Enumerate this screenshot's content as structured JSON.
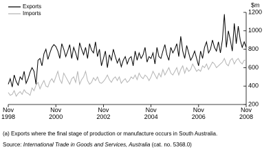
{
  "chart_data": {
    "type": "line",
    "y_unit": "$m",
    "footnote": "(a) Exports where the final stage of production or manufacture occurs in South Australia.",
    "source_prefix": "Source: ",
    "source_title": "International Trade in Goods and Services, Australia",
    "source_suffix": " (cat. no. 5368.0)",
    "x": [
      "1998-11",
      "1998-12",
      "1999-01",
      "1999-02",
      "1999-03",
      "1999-04",
      "1999-05",
      "1999-06",
      "1999-07",
      "1999-08",
      "1999-09",
      "1999-10",
      "1999-11",
      "1999-12",
      "2000-01",
      "2000-02",
      "2000-03",
      "2000-04",
      "2000-05",
      "2000-06",
      "2000-07",
      "2000-08",
      "2000-09",
      "2000-10",
      "2000-11",
      "2000-12",
      "2001-01",
      "2001-02",
      "2001-03",
      "2001-04",
      "2001-05",
      "2001-06",
      "2001-07",
      "2001-08",
      "2001-09",
      "2001-10",
      "2001-11",
      "2001-12",
      "2002-01",
      "2002-02",
      "2002-03",
      "2002-04",
      "2002-05",
      "2002-06",
      "2002-07",
      "2002-08",
      "2002-09",
      "2002-10",
      "2002-11",
      "2002-12",
      "2003-01",
      "2003-02",
      "2003-03",
      "2003-04",
      "2003-05",
      "2003-06",
      "2003-07",
      "2003-08",
      "2003-09",
      "2003-10",
      "2003-11",
      "2003-12",
      "2004-01",
      "2004-02",
      "2004-03",
      "2004-04",
      "2004-05",
      "2004-06",
      "2004-07",
      "2004-08",
      "2004-09",
      "2004-10",
      "2004-11",
      "2004-12",
      "2005-01",
      "2005-02",
      "2005-03",
      "2005-04",
      "2005-05",
      "2005-06",
      "2005-07",
      "2005-08",
      "2005-09",
      "2005-10",
      "2005-11",
      "2005-12",
      "2006-01",
      "2006-02",
      "2006-03",
      "2006-04",
      "2006-05",
      "2006-06",
      "2006-07",
      "2006-08",
      "2006-09",
      "2006-10",
      "2006-11",
      "2006-12",
      "2007-01",
      "2007-02",
      "2007-03",
      "2007-04",
      "2007-05",
      "2007-06",
      "2007-07",
      "2007-08",
      "2007-09",
      "2007-10",
      "2007-11",
      "2007-12",
      "2008-01",
      "2008-02",
      "2008-03",
      "2008-04",
      "2008-05",
      "2008-06",
      "2008-07",
      "2008-08",
      "2008-09",
      "2008-10",
      "2008-11"
    ],
    "series": [
      {
        "name": "Exports",
        "color": "#000000",
        "values": [
          420,
          480,
          390,
          520,
          450,
          410,
          500,
          470,
          560,
          430,
          480,
          550,
          600,
          560,
          420,
          680,
          700,
          620,
          750,
          800,
          690,
          760,
          820,
          850,
          830,
          780,
          700,
          860,
          800,
          720,
          780,
          850,
          700,
          820,
          760,
          680,
          870,
          800,
          740,
          820,
          700,
          860,
          790,
          760,
          880,
          720,
          800,
          620,
          700,
          780,
          600,
          740,
          680,
          800,
          720,
          650,
          700,
          610,
          680,
          720,
          640,
          700,
          720,
          620,
          780,
          680,
          760,
          700,
          740,
          820,
          660,
          720,
          700,
          760,
          640,
          820,
          720,
          700,
          780,
          850,
          740,
          680,
          820,
          760,
          800,
          860,
          720,
          940,
          780,
          700,
          840,
          760,
          680,
          720,
          780,
          700,
          620,
          780,
          700,
          820,
          880,
          760,
          800,
          900,
          820,
          780,
          880,
          760,
          900,
          1180,
          820,
          1000,
          900,
          780,
          1080,
          860,
          1050,
          900,
          820,
          880,
          820
        ]
      },
      {
        "name": "Imports",
        "color": "#b4b4b4",
        "values": [
          330,
          300,
          310,
          350,
          290,
          320,
          340,
          310,
          360,
          330,
          320,
          300,
          380,
          350,
          410,
          440,
          370,
          420,
          460,
          400,
          390,
          450,
          480,
          440,
          500,
          560,
          470,
          430,
          540,
          500,
          460,
          420,
          480,
          500,
          440,
          560,
          420,
          470,
          500,
          560,
          460,
          420,
          440,
          490,
          460,
          500,
          440,
          430,
          450,
          480,
          520,
          470,
          440,
          480,
          500,
          460,
          500,
          430,
          460,
          480,
          440,
          460,
          500,
          480,
          520,
          470,
          540,
          500,
          480,
          520,
          500,
          460,
          500,
          560,
          520,
          480,
          540,
          500,
          580,
          520,
          560,
          600,
          540,
          520,
          560,
          600,
          520,
          580,
          620,
          540,
          600,
          560,
          580,
          640,
          600,
          560,
          580,
          560,
          620,
          600,
          640,
          580,
          620,
          660,
          640,
          600,
          620,
          640,
          660,
          700,
          640,
          620,
          680,
          700,
          640,
          680,
          700,
          660,
          640,
          680,
          680
        ]
      }
    ],
    "ylim": [
      200,
      1200
    ],
    "yticks": [
      200,
      400,
      600,
      800,
      1000,
      1200
    ],
    "xticks": [
      {
        "value": "1998-11",
        "label": "Nov 1998"
      },
      {
        "value": "2000-11",
        "label": "Nov 2000"
      },
      {
        "value": "2002-11",
        "label": "Nov 2002"
      },
      {
        "value": "2004-11",
        "label": "Nov 2004"
      },
      {
        "value": "2006-11",
        "label": "Nov 2006"
      },
      {
        "value": "2008-11",
        "label": "Nov 2008"
      }
    ]
  }
}
